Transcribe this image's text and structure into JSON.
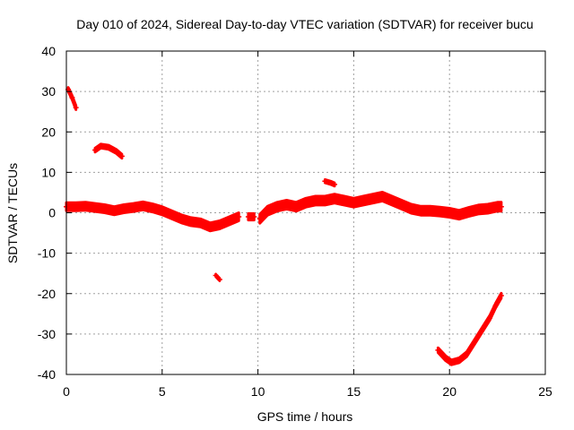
{
  "chart_data": {
    "type": "scatter",
    "title": "Day 010 of 2024, Sidereal Day-to-day VTEC variation (SDTVAR) for receiver bucu",
    "xlabel": "GPS time / hours",
    "ylabel": "SDTVAR / TECUs",
    "xlim": [
      0,
      25
    ],
    "ylim": [
      -40,
      40
    ],
    "xticks": [
      0,
      5,
      10,
      15,
      20,
      25
    ],
    "yticks": [
      -40,
      -30,
      -20,
      -10,
      0,
      10,
      20,
      30,
      40
    ],
    "grid": true,
    "series": [
      {
        "name": "SDTVAR",
        "color": "#ff0000",
        "segments": [
          {
            "x": [
              0.0,
              0.5,
              1.0,
              1.5,
              2.0,
              2.5,
              3.0,
              3.5,
              4.0,
              4.5,
              5.0,
              5.5,
              6.0,
              6.5,
              7.0,
              7.5,
              8.0,
              8.5,
              9.0
            ],
            "y": [
              1.5,
              1.5,
              1.6,
              1.3,
              1.0,
              0.5,
              1.0,
              1.3,
              1.7,
              1.2,
              0.5,
              -0.5,
              -1.5,
              -2.2,
              -2.5,
              -3.5,
              -3.0,
              -2.0,
              -1.0
            ],
            "spread": 1.0
          },
          {
            "x": [
              9.5,
              9.8
            ],
            "y": [
              -1.0,
              -1.0
            ],
            "spread": 0.8
          },
          {
            "x": [
              10.1,
              10.5,
              11.0,
              11.5,
              12.0,
              12.5,
              13.0,
              13.5,
              14.0,
              14.5,
              15.0,
              15.5,
              16.0,
              16.5,
              17.0,
              17.5,
              18.0,
              18.5,
              19.0,
              19.5,
              20.0,
              20.5,
              21.0,
              21.5,
              22.0,
              22.5,
              22.7
            ],
            "y": [
              -1.5,
              0.5,
              1.5,
              2.0,
              1.5,
              2.5,
              3.0,
              3.0,
              3.5,
              3.0,
              2.5,
              3.0,
              3.5,
              4.0,
              3.0,
              2.0,
              1.0,
              0.5,
              0.5,
              0.3,
              0.0,
              -0.5,
              0.2,
              0.8,
              1.0,
              1.5,
              1.5
            ],
            "spread": 1.1
          },
          {
            "x": [
              0.1,
              0.3,
              0.5
            ],
            "y": [
              30.5,
              28.5,
              26.0
            ],
            "spread": 0.5
          },
          {
            "x": [
              1.5,
              1.8,
              2.2,
              2.6,
              2.9
            ],
            "y": [
              15.5,
              16.5,
              16.2,
              15.2,
              14.0
            ],
            "spread": 0.5
          },
          {
            "x": [
              13.5,
              13.8,
              14.0
            ],
            "y": [
              7.8,
              7.4,
              7.0
            ],
            "spread": 0.4
          },
          {
            "x": [
              7.8,
              8.0
            ],
            "y": [
              -15.5,
              -16.5
            ],
            "spread": 0.3
          },
          {
            "x": [
              19.4,
              19.8,
              20.1,
              20.5,
              20.9,
              21.3,
              21.7,
              22.1,
              22.4,
              22.7
            ],
            "y": [
              -34.0,
              -36.0,
              -37.0,
              -36.5,
              -35.0,
              -32.0,
              -29.0,
              -26.0,
              -23.0,
              -20.5
            ],
            "spread": 0.6
          }
        ]
      }
    ]
  }
}
